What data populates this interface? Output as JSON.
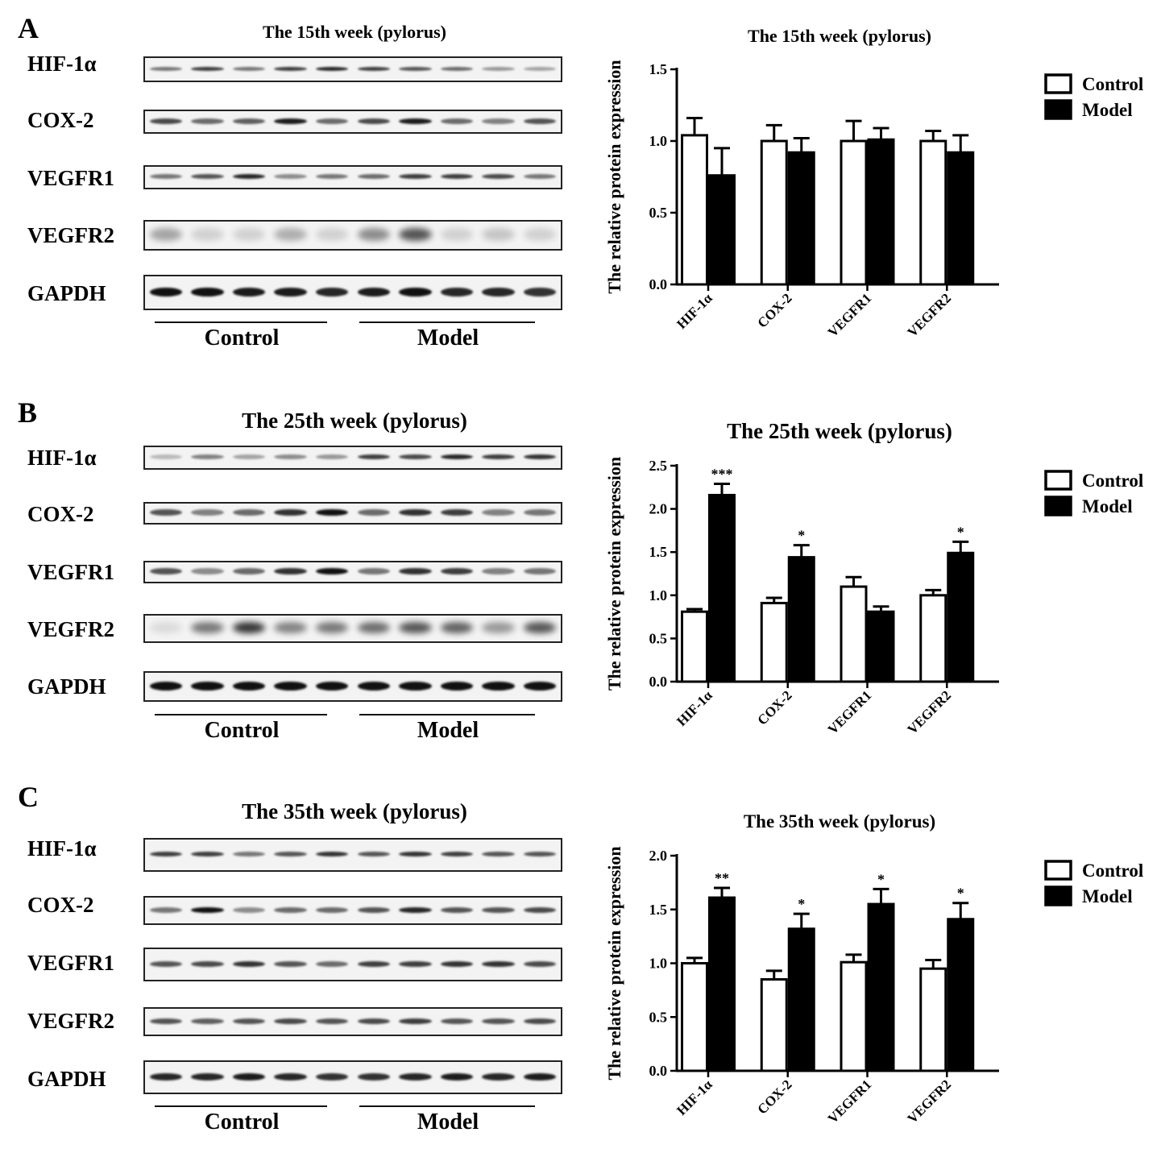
{
  "panels": [
    {
      "letter": "A",
      "blot_title": "The 15th week (pylorus)",
      "proteins": [
        "HIF-1α",
        "COX-2",
        "VEGFR1",
        "VEGFR2",
        "GAPDH"
      ],
      "groups": [
        "Control",
        "Model"
      ]
    },
    {
      "letter": "B",
      "blot_title": "The 25th week (pylorus)",
      "proteins": [
        "HIF-1α",
        "COX-2",
        "VEGFR1",
        "VEGFR2",
        "GAPDH"
      ],
      "groups": [
        "Control",
        "Model"
      ]
    },
    {
      "letter": "C",
      "blot_title": "The 35th week (pylorus)",
      "proteins": [
        "HIF-1α",
        "COX-2",
        "VEGFR1",
        "VEGFR2",
        "GAPDH"
      ],
      "groups": [
        "Control",
        "Model"
      ]
    }
  ],
  "chart_data": [
    {
      "type": "bar",
      "title": "The 15th week (pylorus)",
      "ylabel": "The relative protein expression",
      "xlabel": "",
      "categories": [
        "HIF-1α",
        "COX-2",
        "VEGFR1",
        "VEGFR2"
      ],
      "ylim": [
        0,
        1.5
      ],
      "yticks": [
        "0.0",
        "0.5",
        "1.0",
        "1.5"
      ],
      "legend_position": "right",
      "series": [
        {
          "name": "Control",
          "fill": "#ffffff",
          "values": [
            1.04,
            1.0,
            1.0,
            1.0
          ],
          "errors": [
            0.12,
            0.11,
            0.14,
            0.07
          ]
        },
        {
          "name": "Model",
          "fill": "#000000",
          "values": [
            0.76,
            0.92,
            1.01,
            0.92
          ],
          "errors": [
            0.19,
            0.1,
            0.08,
            0.12
          ]
        }
      ],
      "significance": [
        "",
        "",
        "",
        ""
      ]
    },
    {
      "type": "bar",
      "title": "The 25th week (pylorus)",
      "ylabel": "The relative protein expression",
      "xlabel": "",
      "categories": [
        "HIF-1α",
        "COX-2",
        "VEGFR1",
        "VEGFR2"
      ],
      "ylim": [
        0,
        2.5
      ],
      "yticks": [
        "0.0",
        "0.5",
        "1.0",
        "1.5",
        "2.0",
        "2.5"
      ],
      "legend_position": "right",
      "series": [
        {
          "name": "Control",
          "fill": "#ffffff",
          "values": [
            0.81,
            0.91,
            1.1,
            1.0
          ],
          "errors": [
            0.03,
            0.06,
            0.11,
            0.06
          ]
        },
        {
          "name": "Model",
          "fill": "#000000",
          "values": [
            2.16,
            1.44,
            0.81,
            1.49
          ],
          "errors": [
            0.13,
            0.14,
            0.06,
            0.13
          ]
        }
      ],
      "significance": [
        "***",
        "*",
        "",
        "*"
      ]
    },
    {
      "type": "bar",
      "title": "The 35th week (pylorus)",
      "ylabel": "The relative protein expression",
      "xlabel": "",
      "categories": [
        "HIF-1α",
        "COX-2",
        "VEGFR1",
        "VEGFR2"
      ],
      "ylim": [
        0,
        2.0
      ],
      "yticks": [
        "0.0",
        "0.5",
        "1.0",
        "1.5",
        "2.0"
      ],
      "legend_position": "right",
      "series": [
        {
          "name": "Control",
          "fill": "#ffffff",
          "values": [
            1.0,
            0.85,
            1.01,
            0.95
          ],
          "errors": [
            0.05,
            0.08,
            0.07,
            0.08
          ]
        },
        {
          "name": "Model",
          "fill": "#000000",
          "values": [
            1.61,
            1.32,
            1.55,
            1.41
          ],
          "errors": [
            0.09,
            0.14,
            0.14,
            0.15
          ]
        }
      ],
      "significance": [
        "**",
        "*",
        "*",
        "*"
      ]
    }
  ]
}
